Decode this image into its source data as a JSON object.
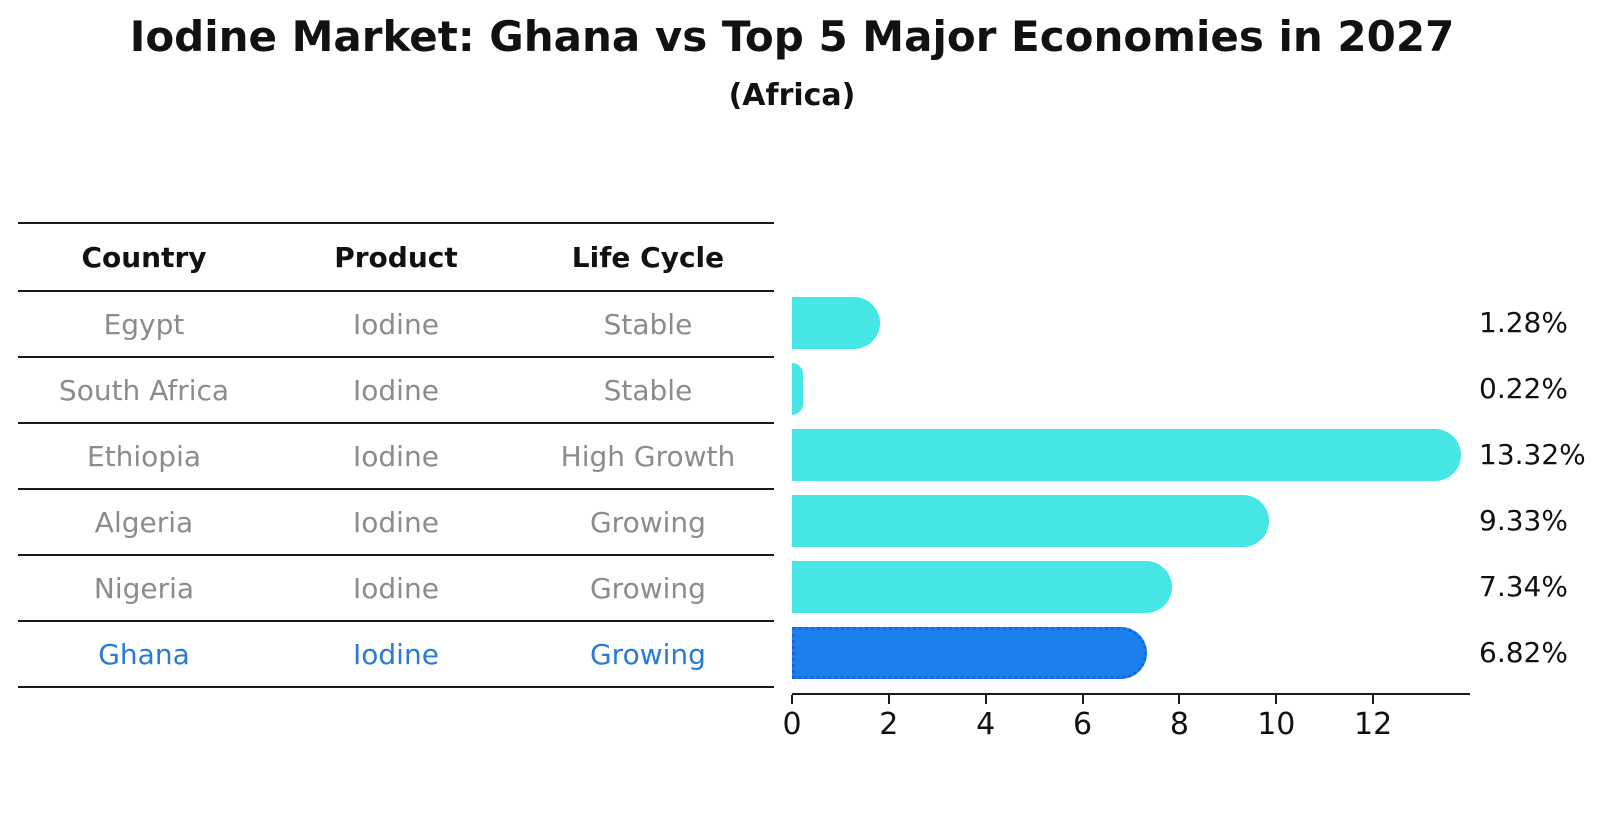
{
  "chart_data": {
    "type": "bar",
    "orientation": "horizontal",
    "title": "Iodine Market: Ghana vs Top 5 Major Economies in 2027",
    "subtitle": "(Africa)",
    "categories": [
      "Egypt",
      "South Africa",
      "Ethiopia",
      "Algeria",
      "Nigeria",
      "Ghana"
    ],
    "values": [
      1.28,
      0.22,
      13.32,
      9.33,
      7.34,
      6.82
    ],
    "value_labels": [
      "1.28%",
      "0.22%",
      "13.32%",
      "9.33%",
      "7.34%",
      "6.82%"
    ],
    "xticks": [
      "0",
      "2",
      "4",
      "6",
      "8",
      "10",
      "12"
    ],
    "xlim": [
      0,
      14
    ],
    "grid": false,
    "legend": false,
    "bar_color": "#46e6e4",
    "highlight_index": 5,
    "highlight_color": "#1b80ee",
    "highlight_border_color": "#1666d8"
  },
  "table": {
    "headers": [
      "Country",
      "Product",
      "Life Cycle"
    ],
    "rows": [
      [
        "Egypt",
        "Iodine",
        "Stable"
      ],
      [
        "South Africa",
        "Iodine",
        "Stable"
      ],
      [
        "Ethiopia",
        "Iodine",
        "High Growth"
      ],
      [
        "Algeria",
        "Iodine",
        "Growing"
      ],
      [
        "Nigeria",
        "Iodine",
        "Growing"
      ],
      [
        "Ghana",
        "Iodine",
        "Growing"
      ]
    ],
    "row_text_color": "#8c8c8c",
    "highlight_row_index": 5,
    "highlight_text_color": "#2a7ad6"
  }
}
